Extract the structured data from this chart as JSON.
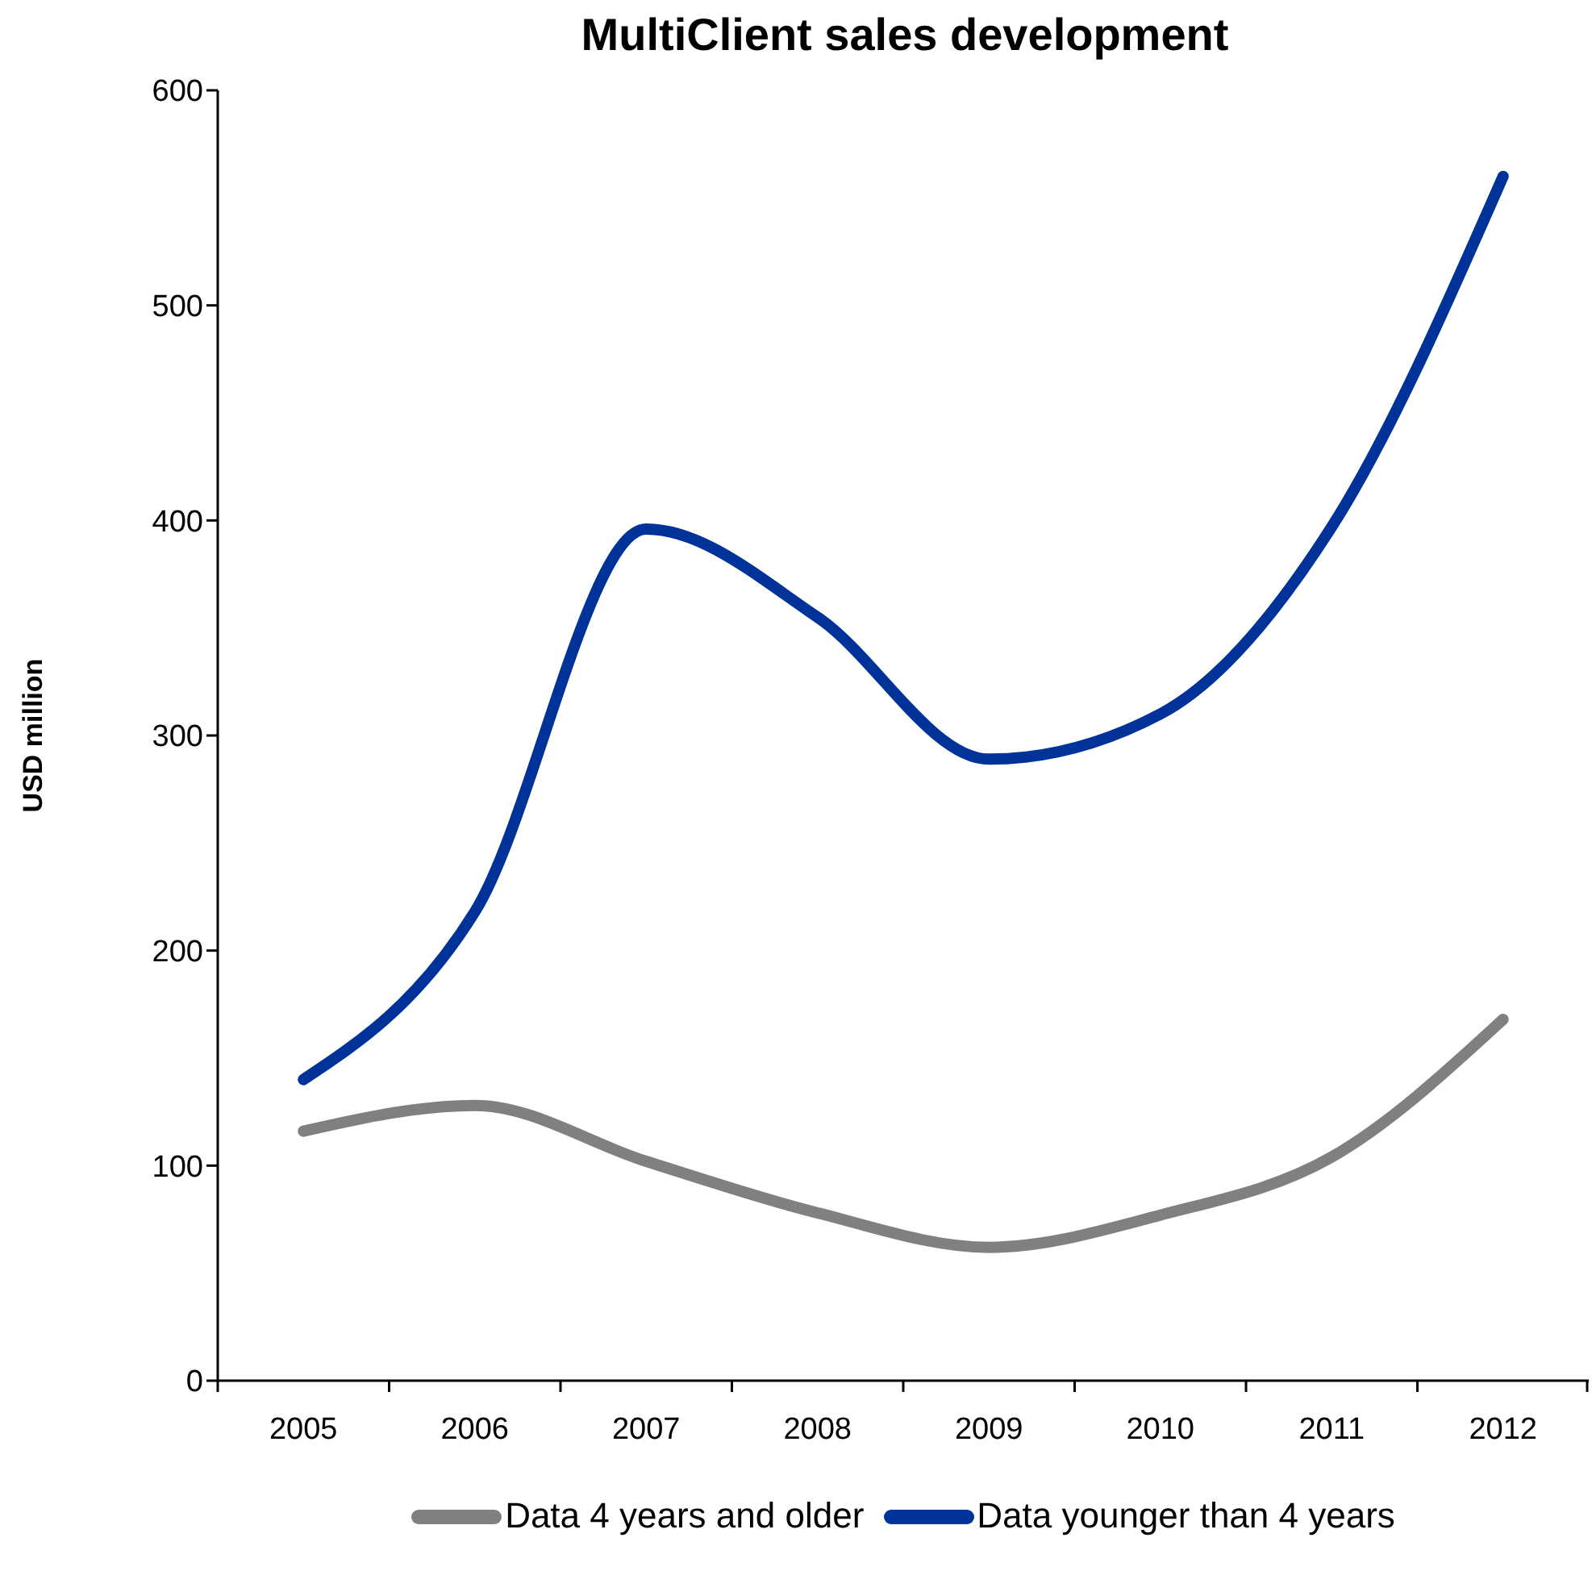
{
  "chart_data": {
    "type": "line",
    "title": "MultiClient sales development",
    "ylabel": "USD million",
    "categories": [
      "2005",
      "2006",
      "2007",
      "2008",
      "2009",
      "2010",
      "2011",
      "2012"
    ],
    "series": [
      {
        "name": "Data 4 years and older",
        "color": "#808080",
        "values": [
          116,
          128,
          102,
          78,
          62,
          77,
          104,
          168
        ]
      },
      {
        "name": "Data younger than 4 years",
        "color": "#003399",
        "values": [
          140,
          218,
          396,
          355,
          289,
          310,
          397,
          560
        ]
      }
    ],
    "ylim": [
      0,
      600
    ],
    "yticks": [
      0,
      100,
      200,
      300,
      400,
      500,
      600
    ],
    "legend": "bottom",
    "marker": "none",
    "line_style": "solid"
  }
}
